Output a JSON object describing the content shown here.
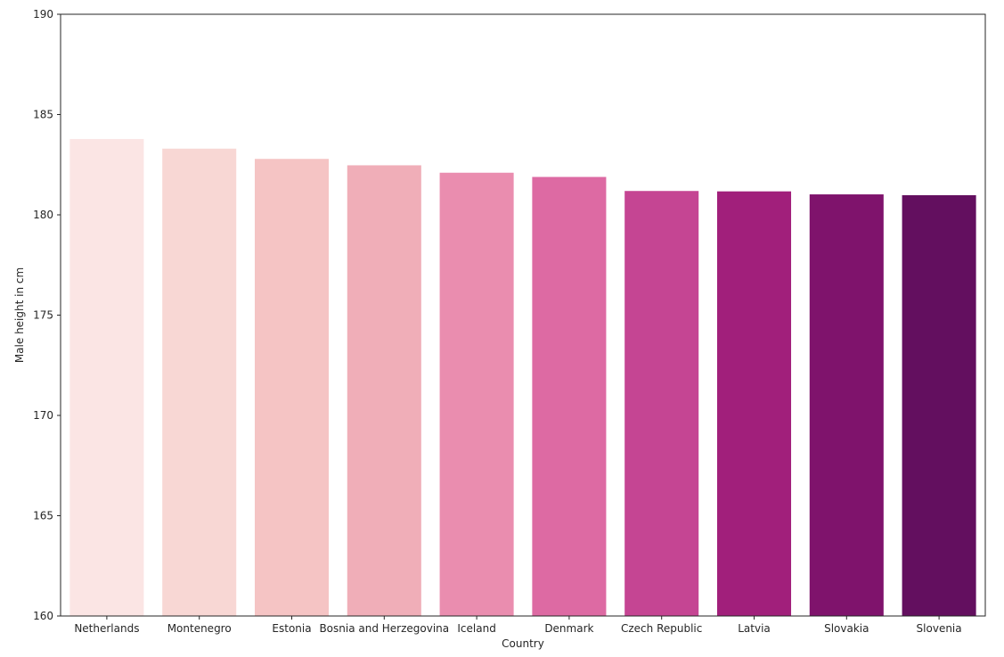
{
  "chart_data": {
    "type": "bar",
    "title": "",
    "xlabel": "Country",
    "ylabel": "Male height in cm",
    "ylim": [
      160,
      190
    ],
    "yticks": [
      160,
      165,
      170,
      175,
      180,
      185,
      190
    ],
    "grid": false,
    "legend": "none",
    "categories": [
      "Netherlands",
      "Montenegro",
      "Estonia",
      "Bosnia and Herzegovina",
      "Iceland",
      "Denmark",
      "Czech Republic",
      "Latvia",
      "Slovakia",
      "Slovenia"
    ],
    "values": [
      183.78,
      183.3,
      182.79,
      182.47,
      182.1,
      181.89,
      181.19,
      181.17,
      181.02,
      180.98
    ],
    "colors": [
      "#fbe5e4",
      "#f8d7d4",
      "#f5c4c4",
      "#f0aeb8",
      "#ea8daf",
      "#dd6aa3",
      "#c54593",
      "#a11f7b",
      "#7f136c",
      "#630f5f"
    ]
  }
}
